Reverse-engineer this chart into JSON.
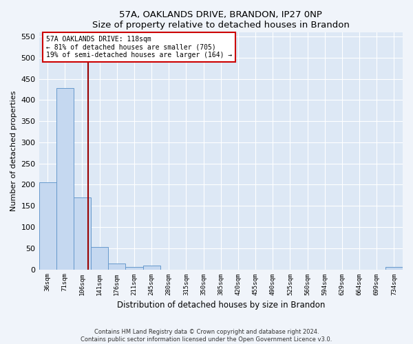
{
  "title1": "57A, OAKLANDS DRIVE, BRANDON, IP27 0NP",
  "title2": "Size of property relative to detached houses in Brandon",
  "xlabel": "Distribution of detached houses by size in Brandon",
  "ylabel": "Number of detached properties",
  "categories": [
    "36sqm",
    "71sqm",
    "106sqm",
    "141sqm",
    "176sqm",
    "211sqm",
    "245sqm",
    "280sqm",
    "315sqm",
    "350sqm",
    "385sqm",
    "420sqm",
    "455sqm",
    "490sqm",
    "525sqm",
    "560sqm",
    "594sqm",
    "629sqm",
    "664sqm",
    "699sqm",
    "734sqm"
  ],
  "bar_values": [
    205,
    428,
    170,
    53,
    14,
    5,
    9,
    0,
    0,
    0,
    0,
    0,
    0,
    0,
    0,
    0,
    0,
    0,
    0,
    0,
    5
  ],
  "bar_color": "#c5d8f0",
  "bar_edge_color": "#6699cc",
  "marker_color": "#990000",
  "annotation_line1": "57A OAKLANDS DRIVE: 118sqm",
  "annotation_line2": "← 81% of detached houses are smaller (705)",
  "annotation_line3": "19% of semi-detached houses are larger (164) →",
  "ylim": [
    0,
    560
  ],
  "yticks": [
    0,
    50,
    100,
    150,
    200,
    250,
    300,
    350,
    400,
    450,
    500,
    550
  ],
  "footer1": "Contains HM Land Registry data © Crown copyright and database right 2024.",
  "footer2": "Contains public sector information licensed under the Open Government Licence v3.0.",
  "bg_color": "#f0f4fa",
  "plot_bg_color": "#dde8f5"
}
